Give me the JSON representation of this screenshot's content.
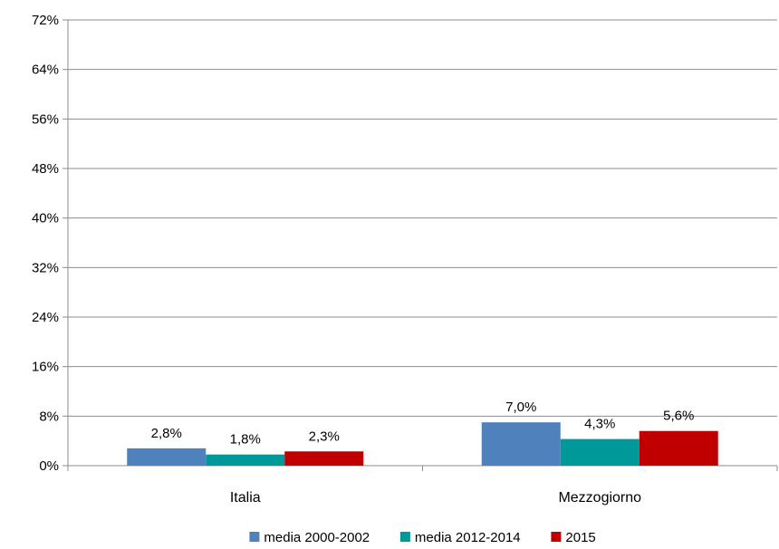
{
  "chart_data": {
    "type": "bar",
    "categories": [
      "Italia",
      "Mezzogiorno"
    ],
    "series": [
      {
        "name": "media 2000-2002",
        "values": [
          2.8,
          7.0
        ],
        "labels": [
          "2,8%",
          "7,0%"
        ],
        "color": "#4F81BD"
      },
      {
        "name": "media 2012-2014",
        "values": [
          1.8,
          4.3
        ],
        "labels": [
          "1,8%",
          "4,3%"
        ],
        "color": "#009999"
      },
      {
        "name": "2015",
        "values": [
          2.3,
          5.6
        ],
        "labels": [
          "2,3%",
          "5,6%"
        ],
        "color": "#C00000"
      }
    ],
    "ylim": [
      0,
      72
    ],
    "yticks": [
      0,
      8,
      16,
      24,
      32,
      40,
      48,
      56,
      64,
      72
    ],
    "ytick_labels": [
      "0%",
      "8%",
      "16%",
      "24%",
      "32%",
      "40%",
      "48%",
      "56%",
      "64%",
      "72%"
    ],
    "grid": true,
    "legend_position": "bottom",
    "title": "",
    "xlabel": "",
    "ylabel": ""
  }
}
